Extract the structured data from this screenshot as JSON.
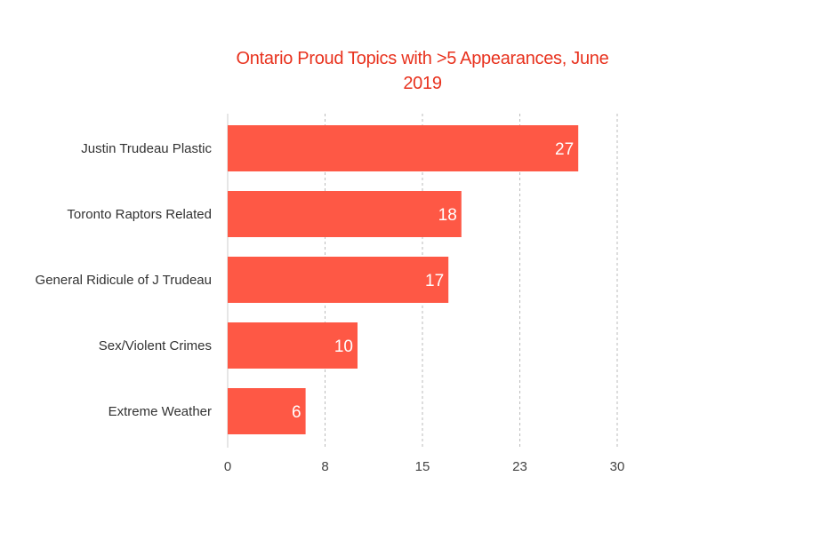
{
  "colors": {
    "title": "#e8321e",
    "bar": "#fe5845",
    "bar_label": "#ffffff",
    "category_label": "#333333",
    "tick_label": "#444444",
    "gridline": "#bbbbbb",
    "axis": "#cccccc"
  },
  "chart_data": {
    "type": "bar",
    "orientation": "horizontal",
    "title_line1": "Ontario Proud Topics with >5 Appearances, June",
    "title_line2": "2019",
    "categories": [
      "Justin Trudeau Plastic",
      "Toronto Raptors Related",
      "General Ridicule of J Trudeau",
      "Sex/Violent Crimes",
      "Extreme Weather"
    ],
    "values": [
      27,
      18,
      17,
      10,
      6
    ],
    "data_labels": [
      "27",
      "18",
      "17",
      "10",
      "6"
    ],
    "xlim": [
      0,
      30
    ],
    "x_ticks": [
      0,
      7.5,
      15,
      22.5,
      30
    ],
    "x_tick_labels": [
      "0",
      "8",
      "15",
      "23",
      "30"
    ],
    "xlabel": "",
    "ylabel": "",
    "grid": "vertical dashed",
    "legend": "none"
  }
}
